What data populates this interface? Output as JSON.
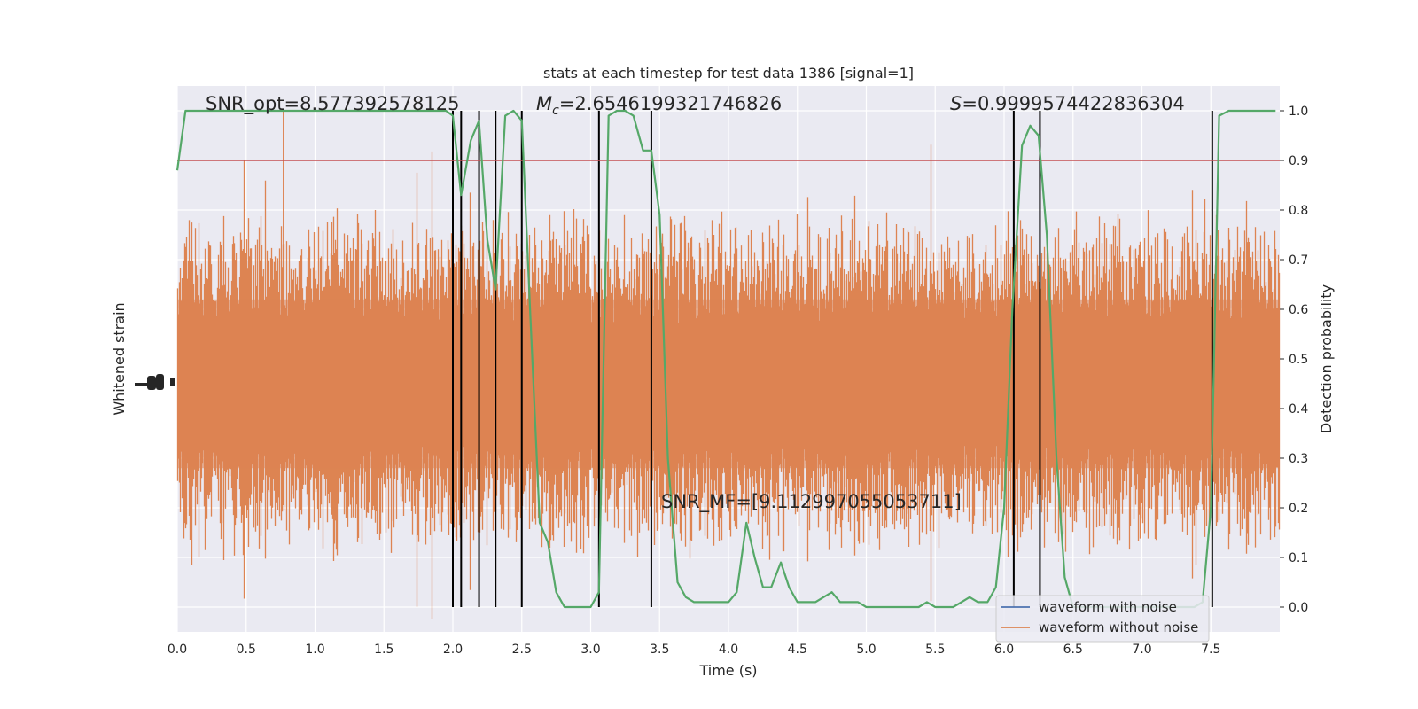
{
  "chart_data": {
    "type": "line",
    "title": "stats at each timestep for test data 1386 [signal=1]",
    "xlabel": "Time (s)",
    "ylabel_left": "Whitened strain",
    "ylabel_right": "Detection probability",
    "xlim": [
      0.0,
      8.0
    ],
    "ylim_right": [
      -0.05,
      1.05
    ],
    "x_ticks": [
      "0.0",
      "0.5",
      "1.0",
      "1.5",
      "2.0",
      "2.5",
      "3.0",
      "3.5",
      "4.0",
      "4.5",
      "5.0",
      "5.5",
      "6.0",
      "6.5",
      "7.0",
      "7.5"
    ],
    "y_ticks_right": [
      "0.0",
      "0.1",
      "0.2",
      "0.3",
      "0.4",
      "0.5",
      "0.6",
      "0.7",
      "0.8",
      "0.9",
      "1.0"
    ],
    "grid": true,
    "legend_placement": "lower-right",
    "annotations": {
      "snr_opt": "SNR_opt=8.577392578125",
      "mc_symbol": "M",
      "mc_sub": "c",
      "mc_value": "=2.6546199321746826",
      "s_symbol": "S",
      "s_value": "=0.9999574422836304",
      "snr_mf": "SNR_MF=[9.112997055053711]"
    },
    "threshold": 0.9,
    "vertical_lines_x": [
      2.0,
      2.06,
      2.19,
      2.31,
      2.5,
      3.06,
      3.44,
      6.07,
      6.26,
      7.51
    ],
    "series": [
      {
        "name": "waveform with noise",
        "color": "#4c72b0"
      },
      {
        "name": "waveform without noise",
        "color": "#dd8452"
      },
      {
        "color": "#55a868",
        "x": [
          0.0,
          0.06,
          0.2,
          0.4,
          0.6,
          0.8,
          1.0,
          1.2,
          1.4,
          1.6,
          1.8,
          1.95,
          2.0,
          2.06,
          2.13,
          2.19,
          2.25,
          2.31,
          2.38,
          2.44,
          2.5,
          2.56,
          2.63,
          2.69,
          2.75,
          2.81,
          2.88,
          2.94,
          3.0,
          3.06,
          3.13,
          3.19,
          3.25,
          3.31,
          3.38,
          3.44,
          3.5,
          3.56,
          3.63,
          3.69,
          3.75,
          3.81,
          3.88,
          3.94,
          4.0,
          4.06,
          4.13,
          4.19,
          4.25,
          4.31,
          4.38,
          4.44,
          4.5,
          4.56,
          4.63,
          4.69,
          4.75,
          4.81,
          4.88,
          4.94,
          5.0,
          5.06,
          5.13,
          5.19,
          5.25,
          5.31,
          5.38,
          5.44,
          5.5,
          5.56,
          5.63,
          5.69,
          5.75,
          5.81,
          5.88,
          5.94,
          6.0,
          6.06,
          6.13,
          6.19,
          6.25,
          6.31,
          6.38,
          6.44,
          6.5,
          6.56,
          6.63,
          6.69,
          6.75,
          6.81,
          6.88,
          6.94,
          7.0,
          7.06,
          7.13,
          7.19,
          7.25,
          7.31,
          7.38,
          7.44,
          7.5,
          7.56,
          7.63,
          7.69,
          7.75,
          7.81,
          7.88,
          7.94,
          7.97
        ],
        "values": [
          0.88,
          1.0,
          1.0,
          1.0,
          1.0,
          1.0,
          1.0,
          1.0,
          1.0,
          1.0,
          1.0,
          1.0,
          0.99,
          0.83,
          0.94,
          0.98,
          0.74,
          0.64,
          0.99,
          1.0,
          0.98,
          0.6,
          0.17,
          0.13,
          0.03,
          0.0,
          0.0,
          0.0,
          0.0,
          0.03,
          0.99,
          1.0,
          1.0,
          0.99,
          0.92,
          0.92,
          0.79,
          0.3,
          0.05,
          0.02,
          0.01,
          0.01,
          0.01,
          0.01,
          0.01,
          0.03,
          0.17,
          0.1,
          0.04,
          0.04,
          0.09,
          0.04,
          0.01,
          0.01,
          0.01,
          0.02,
          0.03,
          0.01,
          0.01,
          0.01,
          0.0,
          0.0,
          0.0,
          0.0,
          0.0,
          0.0,
          0.0,
          0.01,
          0.0,
          0.0,
          0.0,
          0.01,
          0.02,
          0.01,
          0.01,
          0.04,
          0.2,
          0.6,
          0.93,
          0.97,
          0.95,
          0.75,
          0.3,
          0.06,
          0.0,
          0.0,
          0.0,
          0.0,
          0.0,
          0.0,
          0.0,
          0.0,
          0.0,
          0.0,
          0.0,
          0.0,
          0.0,
          0.0,
          0.0,
          0.01,
          0.2,
          0.99,
          1.0,
          1.0,
          1.0,
          1.0,
          1.0,
          1.0,
          1.0
        ]
      }
    ]
  }
}
